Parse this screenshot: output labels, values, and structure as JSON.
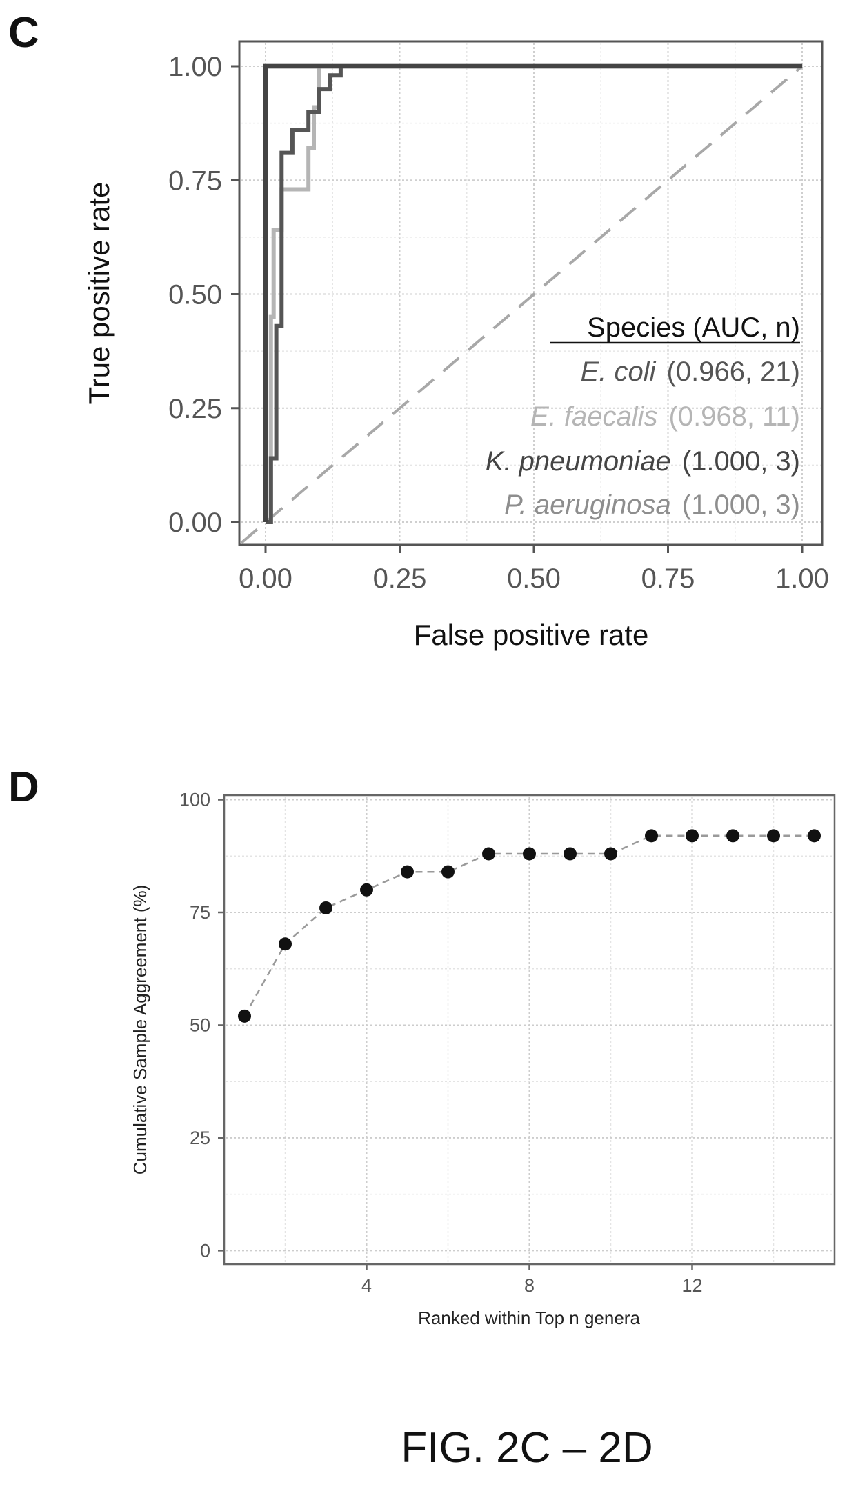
{
  "panels": {
    "c_letter": "C",
    "d_letter": "D"
  },
  "figure_caption": "FIG. 2C – 2D",
  "chart_data": [
    {
      "panel": "C",
      "type": "line",
      "title": "",
      "xlabel": "False positive rate",
      "ylabel": "True positive rate",
      "xlim": [
        0,
        1
      ],
      "ylim": [
        0,
        1
      ],
      "x_ticks": [
        "0.00",
        "0.25",
        "0.50",
        "0.75",
        "1.00"
      ],
      "y_ticks": [
        "0.00",
        "0.25",
        "0.50",
        "0.75",
        "1.00"
      ],
      "grid": true,
      "legend_title": "Species (AUC, n)",
      "legend_placement": "bottom-right",
      "reference_line": {
        "style": "dashed",
        "from": [
          0,
          0
        ],
        "to": [
          1,
          1
        ]
      },
      "series": [
        {
          "name": "E. coli",
          "stat": "(0.966, 21)",
          "color": "#555555",
          "points": [
            [
              0,
              0
            ],
            [
              0.01,
              0
            ],
            [
              0.01,
              0.14
            ],
            [
              0.02,
              0.14
            ],
            [
              0.02,
              0.43
            ],
            [
              0.03,
              0.43
            ],
            [
              0.03,
              0.81
            ],
            [
              0.05,
              0.81
            ],
            [
              0.05,
              0.86
            ],
            [
              0.08,
              0.86
            ],
            [
              0.08,
              0.9
            ],
            [
              0.1,
              0.9
            ],
            [
              0.1,
              0.95
            ],
            [
              0.12,
              0.95
            ],
            [
              0.12,
              0.98
            ],
            [
              0.14,
              0.98
            ],
            [
              0.14,
              1
            ],
            [
              1,
              1
            ]
          ]
        },
        {
          "name": "E. faecalis",
          "stat": "(0.968, 11)",
          "color": "#b5b5b5",
          "points": [
            [
              0,
              0
            ],
            [
              0.01,
              0
            ],
            [
              0.01,
              0.45
            ],
            [
              0.015,
              0.45
            ],
            [
              0.015,
              0.64
            ],
            [
              0.03,
              0.64
            ],
            [
              0.03,
              0.73
            ],
            [
              0.08,
              0.73
            ],
            [
              0.08,
              0.82
            ],
            [
              0.09,
              0.82
            ],
            [
              0.09,
              0.91
            ],
            [
              0.1,
              0.91
            ],
            [
              0.1,
              1
            ],
            [
              1,
              1
            ]
          ]
        },
        {
          "name": "K. pneumoniae",
          "stat": "(1.000, 3)",
          "color": "#444444",
          "points": [
            [
              0,
              0
            ],
            [
              0,
              1
            ],
            [
              1,
              1
            ]
          ]
        },
        {
          "name": "P. aeruginosa",
          "stat": "(1.000, 3)",
          "color": "#8e8e8e",
          "points": [
            [
              0,
              0
            ],
            [
              0,
              1
            ],
            [
              1,
              1
            ]
          ]
        }
      ]
    },
    {
      "panel": "D",
      "type": "scatter",
      "title": "",
      "xlabel": "Ranked within Top n genera",
      "ylabel": "Cumulative Sample Aggreement (%)",
      "xlim": [
        0.5,
        15.5
      ],
      "ylim": [
        -3,
        101
      ],
      "x_ticks": [
        4,
        8,
        12
      ],
      "y_ticks": [
        0,
        25,
        50,
        75,
        100
      ],
      "grid": true,
      "connected": true,
      "x": [
        1,
        2,
        3,
        4,
        5,
        6,
        7,
        8,
        9,
        10,
        11,
        12,
        13,
        14,
        15
      ],
      "y": [
        52,
        68,
        76,
        80,
        84,
        84,
        88,
        88,
        88,
        88,
        92,
        92,
        92,
        92,
        92
      ]
    }
  ]
}
